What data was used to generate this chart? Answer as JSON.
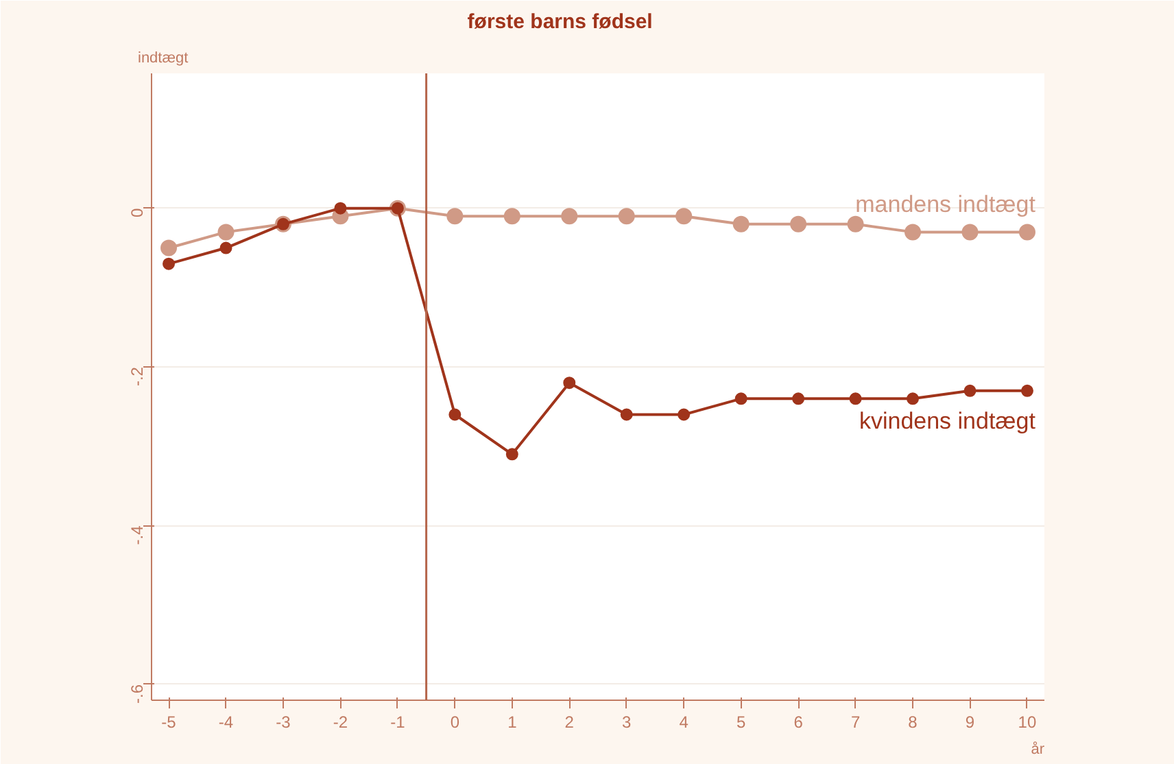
{
  "chart_data": {
    "type": "line",
    "xlabel": "år",
    "ylabel": "indtægt",
    "x": [
      -5,
      -4,
      -3,
      -2,
      -1,
      0,
      1,
      2,
      3,
      4,
      5,
      6,
      7,
      8,
      9,
      10
    ],
    "series": [
      {
        "name": "mandens indtægt",
        "color": "#d09a86",
        "values": [
          -0.05,
          -0.03,
          -0.02,
          -0.01,
          0,
          -0.01,
          -0.01,
          -0.01,
          -0.01,
          -0.01,
          -0.02,
          -0.02,
          -0.02,
          -0.03,
          -0.03,
          -0.03
        ]
      },
      {
        "name": "kvindens indtægt",
        "color": "#a0341b",
        "values": [
          -0.07,
          -0.05,
          -0.02,
          0,
          0,
          -0.26,
          -0.31,
          -0.22,
          -0.26,
          -0.26,
          -0.24,
          -0.24,
          -0.24,
          -0.24,
          -0.23,
          -0.23
        ]
      }
    ],
    "xlim": [
      -5.3,
      10.3
    ],
    "ylim": [
      -0.62,
      0.17
    ],
    "xticks": [
      -5,
      -4,
      -3,
      -2,
      -1,
      0,
      1,
      2,
      3,
      4,
      5,
      6,
      7,
      8,
      9,
      10
    ],
    "yticks": [
      0,
      {
        "value": -0.2,
        "label": "-.2"
      },
      {
        "value": -0.4,
        "label": "-.4"
      },
      {
        "value": -0.6,
        "label": "-.6"
      }
    ],
    "ref_lines": [
      {
        "axis": "x",
        "value": -0.5,
        "label": "første barns fødsel",
        "color": "#b5654a"
      }
    ],
    "grid": "y",
    "legend": false,
    "marker": "circle",
    "line_style": "solid"
  }
}
